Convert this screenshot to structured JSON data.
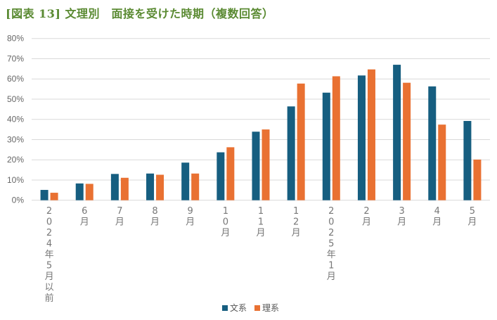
{
  "chart_data": {
    "type": "bar",
    "title": "[図表 13] 文理別　面接を受けた時期（複数回答）",
    "categories": [
      "2024年5月以前",
      "6月",
      "7月",
      "8月",
      "9月",
      "10月",
      "11月",
      "12月",
      "2025年1月",
      "2月",
      "3月",
      "4月",
      "5月"
    ],
    "series": [
      {
        "name": "文系",
        "color": "#165e80",
        "values": [
          5.1,
          8.3,
          13.0,
          13.2,
          18.6,
          23.7,
          33.9,
          46.4,
          53.2,
          61.7,
          67.0,
          56.3,
          39.2
        ]
      },
      {
        "name": "理系",
        "color": "#e97132",
        "values": [
          3.7,
          8.1,
          11.1,
          12.6,
          13.2,
          26.2,
          35.0,
          57.7,
          61.3,
          64.7,
          58.1,
          37.4,
          20.1
        ]
      }
    ],
    "yticks": [
      "0%",
      "10%",
      "20%",
      "30%",
      "40%",
      "50%",
      "60%",
      "70%",
      "80%"
    ],
    "ylim": [
      0,
      80
    ],
    "grid": true,
    "legend": "bottom"
  }
}
